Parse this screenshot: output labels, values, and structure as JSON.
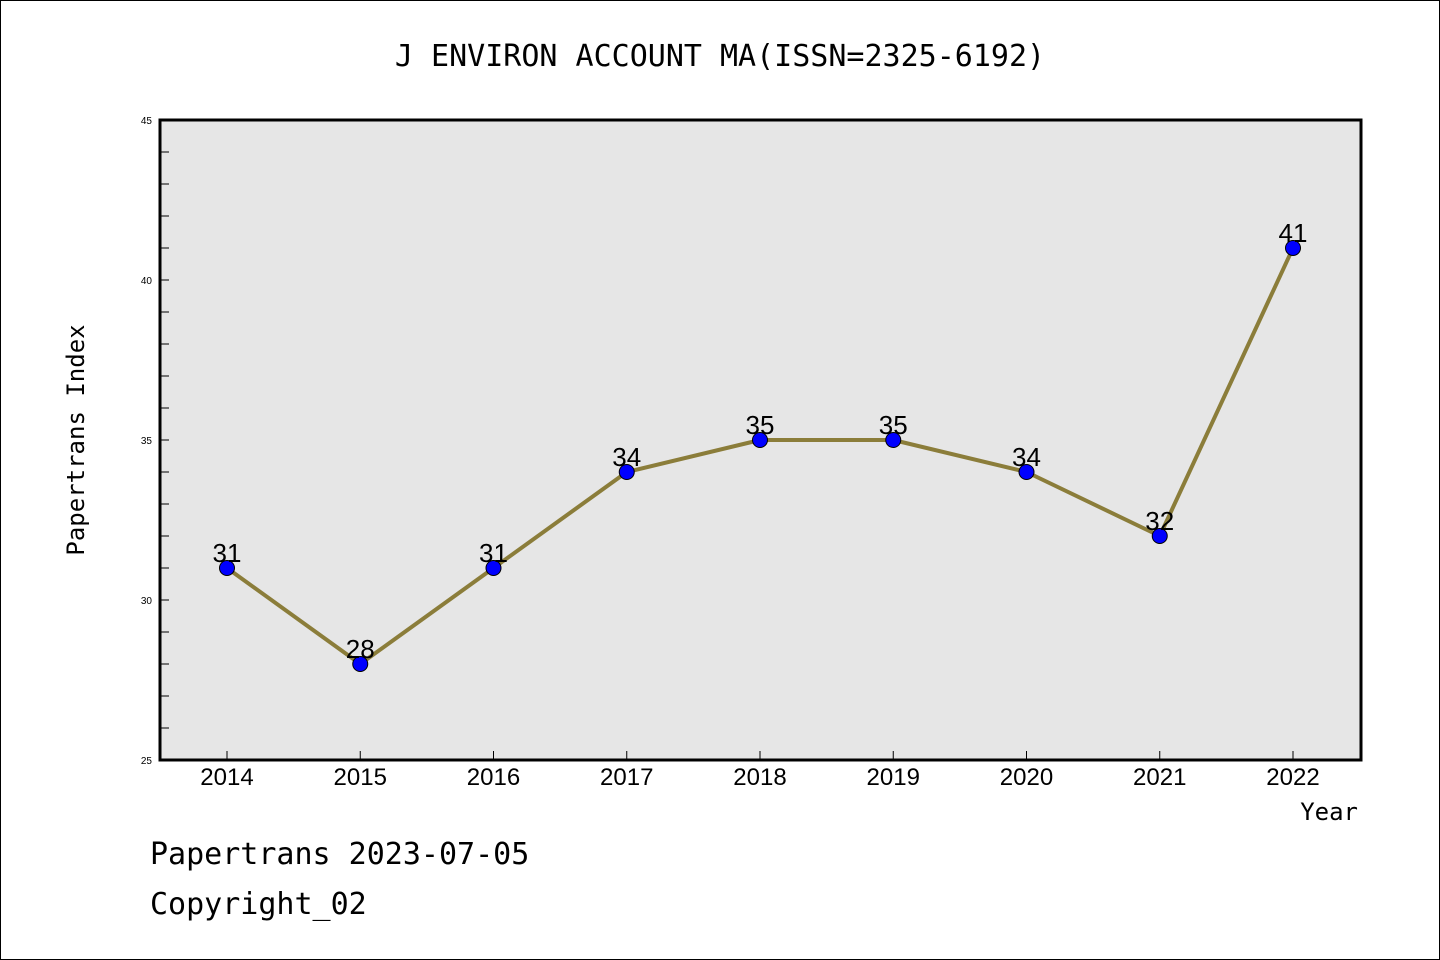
{
  "chart_data": {
    "type": "line",
    "title": "J ENVIRON ACCOUNT MA(ISSN=2325-6192)",
    "xlabel": "Year",
    "ylabel": "Papertrans Index",
    "x": [
      "2014",
      "2015",
      "2016",
      "2017",
      "2018",
      "2019",
      "2020",
      "2021",
      "2022"
    ],
    "series": [
      {
        "values": [
          31,
          28,
          31,
          34,
          35,
          35,
          34,
          32,
          41
        ]
      }
    ],
    "data_labels": [
      "31",
      "28",
      "31",
      "34",
      "35",
      "35",
      "34",
      "32",
      "41"
    ],
    "ylim": [
      25,
      45
    ],
    "yticks": [
      "25",
      "30",
      "35",
      "40",
      "45"
    ],
    "grid": false,
    "colors": {
      "line": "#8b7d3a",
      "marker": "#0000ff",
      "plot_bg": "#e6e6e6"
    }
  },
  "footer": {
    "line1": "Papertrans 2023-07-05",
    "line2": "Copyright_02"
  }
}
